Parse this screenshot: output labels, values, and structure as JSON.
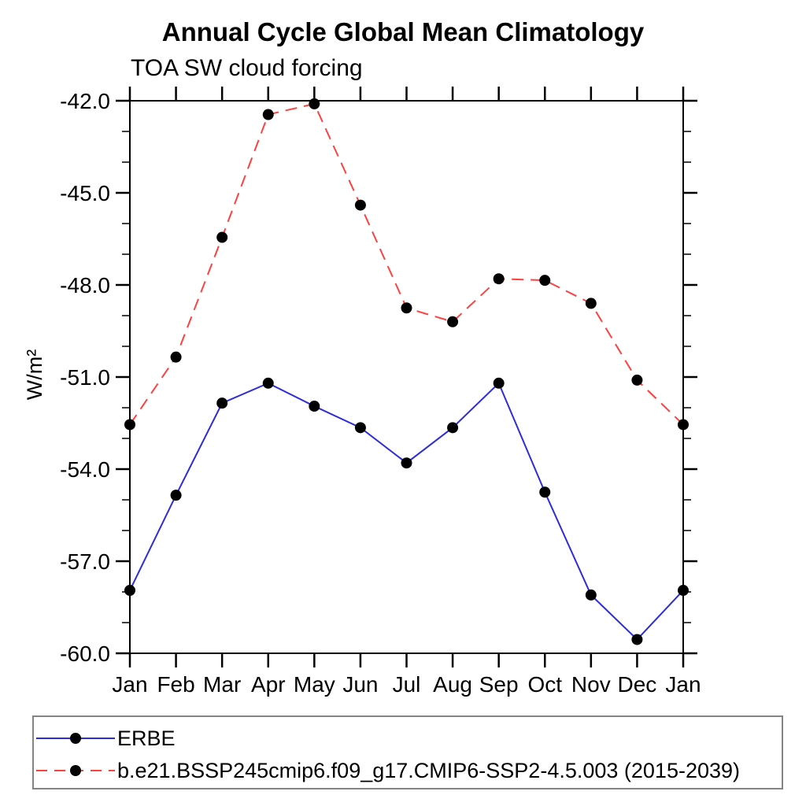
{
  "title": "Annual Cycle Global Mean Climatology",
  "subtitle": "TOA SW cloud forcing",
  "chart_data": {
    "type": "line",
    "title": "Annual Cycle Global Mean Climatology",
    "subtitle": "TOA SW cloud forcing",
    "xlabel": "",
    "ylabel": "W/m²",
    "categories": [
      "Jan",
      "Feb",
      "Mar",
      "Apr",
      "May",
      "Jun",
      "Jul",
      "Aug",
      "Sep",
      "Oct",
      "Nov",
      "Dec",
      "Jan"
    ],
    "ylim": [
      -60.0,
      -42.0
    ],
    "ytick_labels": [
      "-42.0",
      "-45.0",
      "-48.0",
      "-51.0",
      "-54.0",
      "-57.0",
      "-60.0"
    ],
    "yticks_major": [
      -42.0,
      -45.0,
      -48.0,
      -51.0,
      -54.0,
      -57.0,
      -60.0
    ],
    "ytick_minor_step": 1.0,
    "grid": false,
    "legend_position": "bottom-left-box",
    "axis_color": "#000000",
    "marker_color": "#000000",
    "series": [
      {
        "name": "ERBE",
        "color": "#2d2dd9",
        "style": "solid",
        "marker": "circle",
        "values": [
          -57.95,
          -54.85,
          -51.85,
          -51.2,
          -51.95,
          -52.65,
          -53.8,
          -52.65,
          -51.2,
          -54.75,
          -58.1,
          -59.55,
          -57.95
        ]
      },
      {
        "name": "b.e21.BSSP245cmip6.f09_g17.CMIP6-SSP2-4.5.003 (2015-2039)",
        "color": "#ff4040",
        "style": "dashed",
        "marker": "circle",
        "values": [
          -52.55,
          -50.35,
          -46.45,
          -42.45,
          -42.1,
          -45.4,
          -48.75,
          -49.2,
          -47.8,
          -47.85,
          -48.6,
          -51.1,
          -52.55
        ]
      }
    ]
  }
}
